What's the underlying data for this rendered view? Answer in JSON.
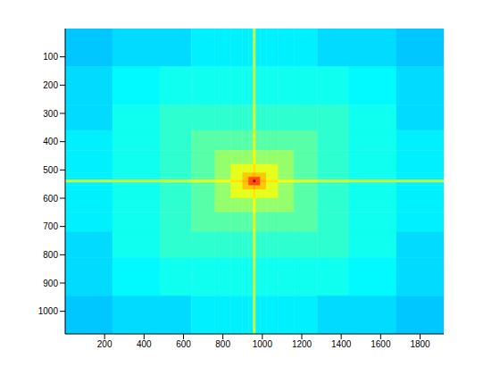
{
  "chart_data": {
    "type": "heatmap",
    "xlim": [
      0,
      1920
    ],
    "ylim": [
      0,
      1080
    ],
    "xticks": [
      200,
      400,
      600,
      800,
      1000,
      1200,
      1400,
      1600,
      1800
    ],
    "yticks": [
      100,
      200,
      300,
      400,
      500,
      600,
      700,
      800,
      900,
      1000
    ],
    "x_edges": [
      0,
      240,
      480,
      640,
      760,
      840,
      900,
      930,
      953,
      967,
      990,
      1020,
      1080,
      1160,
      1280,
      1440,
      1680,
      1920
    ],
    "y_edges": [
      0,
      135,
      270,
      360,
      430,
      480,
      510,
      525,
      535,
      545,
      555,
      570,
      600,
      650,
      720,
      810,
      945,
      1080
    ],
    "zlim": [
      0,
      1
    ],
    "cells": [
      [
        0.32,
        0.34,
        0.34,
        0.36,
        0.36,
        0.36,
        0.36,
        0.36,
        0.56,
        0.36,
        0.36,
        0.36,
        0.36,
        0.36,
        0.34,
        0.34,
        0.32
      ],
      [
        0.34,
        0.37,
        0.39,
        0.39,
        0.39,
        0.39,
        0.39,
        0.39,
        0.57,
        0.39,
        0.39,
        0.39,
        0.39,
        0.39,
        0.39,
        0.37,
        0.34
      ],
      [
        0.34,
        0.39,
        0.42,
        0.42,
        0.42,
        0.42,
        0.42,
        0.42,
        0.58,
        0.42,
        0.42,
        0.42,
        0.42,
        0.42,
        0.42,
        0.39,
        0.34
      ],
      [
        0.36,
        0.39,
        0.42,
        0.46,
        0.46,
        0.46,
        0.46,
        0.46,
        0.6,
        0.46,
        0.46,
        0.46,
        0.46,
        0.46,
        0.42,
        0.39,
        0.36
      ],
      [
        0.36,
        0.39,
        0.42,
        0.46,
        0.52,
        0.52,
        0.52,
        0.52,
        0.62,
        0.52,
        0.52,
        0.52,
        0.52,
        0.46,
        0.42,
        0.39,
        0.36
      ],
      [
        0.36,
        0.39,
        0.42,
        0.46,
        0.52,
        0.6,
        0.6,
        0.6,
        0.65,
        0.6,
        0.6,
        0.6,
        0.52,
        0.46,
        0.42,
        0.39,
        0.36
      ],
      [
        0.36,
        0.39,
        0.42,
        0.46,
        0.52,
        0.6,
        0.68,
        0.68,
        0.7,
        0.68,
        0.68,
        0.6,
        0.52,
        0.46,
        0.42,
        0.39,
        0.36
      ],
      [
        0.36,
        0.39,
        0.42,
        0.46,
        0.52,
        0.6,
        0.68,
        0.8,
        0.8,
        0.8,
        0.68,
        0.6,
        0.52,
        0.46,
        0.42,
        0.39,
        0.36
      ],
      [
        0.56,
        0.57,
        0.58,
        0.6,
        0.62,
        0.65,
        0.7,
        0.8,
        0.95,
        0.8,
        0.7,
        0.65,
        0.62,
        0.6,
        0.58,
        0.57,
        0.56
      ],
      [
        0.36,
        0.39,
        0.42,
        0.46,
        0.52,
        0.6,
        0.68,
        0.8,
        0.8,
        0.8,
        0.68,
        0.6,
        0.52,
        0.46,
        0.42,
        0.39,
        0.36
      ],
      [
        0.36,
        0.39,
        0.42,
        0.46,
        0.52,
        0.6,
        0.68,
        0.68,
        0.7,
        0.68,
        0.68,
        0.6,
        0.52,
        0.46,
        0.42,
        0.39,
        0.36
      ],
      [
        0.36,
        0.39,
        0.42,
        0.46,
        0.52,
        0.6,
        0.6,
        0.6,
        0.65,
        0.6,
        0.6,
        0.6,
        0.52,
        0.46,
        0.42,
        0.39,
        0.36
      ],
      [
        0.36,
        0.39,
        0.42,
        0.46,
        0.52,
        0.52,
        0.52,
        0.52,
        0.62,
        0.52,
        0.52,
        0.52,
        0.52,
        0.46,
        0.42,
        0.39,
        0.36
      ],
      [
        0.36,
        0.39,
        0.42,
        0.46,
        0.46,
        0.46,
        0.46,
        0.46,
        0.6,
        0.46,
        0.46,
        0.46,
        0.46,
        0.46,
        0.42,
        0.39,
        0.36
      ],
      [
        0.34,
        0.39,
        0.42,
        0.42,
        0.42,
        0.42,
        0.42,
        0.42,
        0.58,
        0.42,
        0.42,
        0.42,
        0.42,
        0.42,
        0.42,
        0.39,
        0.34
      ],
      [
        0.34,
        0.37,
        0.39,
        0.39,
        0.39,
        0.39,
        0.39,
        0.39,
        0.57,
        0.39,
        0.39,
        0.39,
        0.39,
        0.39,
        0.39,
        0.37,
        0.34
      ],
      [
        0.32,
        0.34,
        0.34,
        0.36,
        0.36,
        0.36,
        0.36,
        0.36,
        0.56,
        0.36,
        0.36,
        0.36,
        0.36,
        0.36,
        0.34,
        0.34,
        0.32
      ]
    ]
  }
}
